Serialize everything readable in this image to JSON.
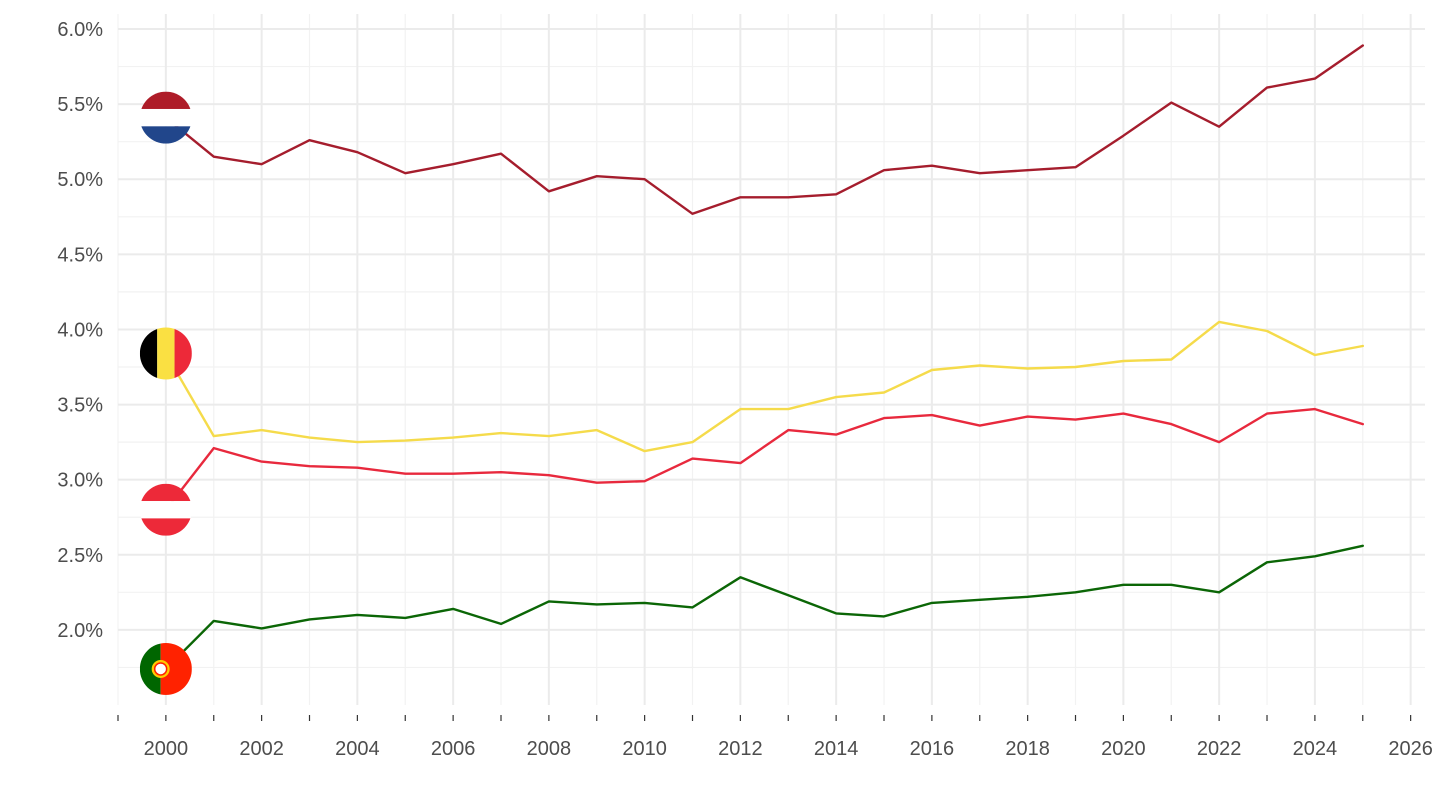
{
  "chart_data": {
    "type": "line",
    "title": "",
    "xlabel": "",
    "ylabel": "",
    "xlim": [
      1999,
      2026.3
    ],
    "ylim": [
      1.5,
      6.1
    ],
    "x_ticks": [
      2000,
      2002,
      2004,
      2006,
      2008,
      2010,
      2012,
      2014,
      2016,
      2018,
      2020,
      2022,
      2024,
      2026
    ],
    "x_tick_labels": [
      "2000",
      "2002",
      "2004",
      "2006",
      "2008",
      "2010",
      "2012",
      "2014",
      "2016",
      "2018",
      "2020",
      "2022",
      "2024",
      "2026"
    ],
    "y_ticks": [
      2.0,
      2.5,
      3.0,
      3.5,
      4.0,
      4.5,
      5.0,
      5.5,
      6.0
    ],
    "y_tick_labels": [
      "2.0%",
      "2.5%",
      "3.0%",
      "3.5%",
      "4.0%",
      "4.5%",
      "5.0%",
      "5.5%",
      "6.0%"
    ],
    "grid": true,
    "legend": "none",
    "x": [
      2000,
      2001,
      2002,
      2003,
      2004,
      2005,
      2006,
      2007,
      2008,
      2009,
      2010,
      2011,
      2012,
      2013,
      2014,
      2015,
      2016,
      2017,
      2018,
      2019,
      2020,
      2021,
      2022,
      2023,
      2024,
      2025
    ],
    "series": [
      {
        "flag": "netherlands-flag",
        "color": "#a51d2d",
        "values": [
          5.41,
          5.15,
          5.1,
          5.26,
          5.18,
          5.04,
          5.1,
          5.17,
          4.92,
          5.02,
          5.0,
          4.77,
          4.88,
          4.88,
          4.9,
          5.06,
          5.09,
          5.04,
          5.06,
          5.08,
          5.29,
          5.51,
          5.35,
          5.61,
          5.67,
          5.89
        ]
      },
      {
        "flag": "belgium-flag",
        "color": "#f5db4b",
        "values": [
          3.84,
          3.29,
          3.33,
          3.28,
          3.25,
          3.26,
          3.28,
          3.31,
          3.29,
          3.33,
          3.19,
          3.25,
          3.47,
          3.47,
          3.55,
          3.58,
          3.73,
          3.76,
          3.74,
          3.75,
          3.79,
          3.8,
          4.05,
          3.99,
          3.83,
          3.89
        ]
      },
      {
        "flag": "austria-flag",
        "color": "#e8293d",
        "values": [
          2.8,
          3.21,
          3.12,
          3.09,
          3.08,
          3.04,
          3.04,
          3.05,
          3.03,
          2.98,
          2.99,
          3.14,
          3.11,
          3.33,
          3.3,
          3.41,
          3.43,
          3.36,
          3.42,
          3.4,
          3.44,
          3.37,
          3.25,
          3.44,
          3.47,
          3.37
        ]
      },
      {
        "flag": "portugal-flag",
        "color": "#0b6606",
        "values": [
          1.74,
          2.06,
          2.01,
          2.07,
          2.1,
          2.08,
          2.14,
          2.04,
          2.19,
          2.17,
          2.18,
          2.15,
          2.35,
          2.23,
          2.11,
          2.09,
          2.18,
          2.2,
          2.22,
          2.25,
          2.3,
          2.3,
          2.25,
          2.45,
          2.49,
          2.56
        ]
      }
    ]
  },
  "colors": {
    "netherlands_red": "#ae1c28",
    "netherlands_white": "#ffffff",
    "netherlands_blue": "#21468b",
    "belgium_black": "#000000",
    "belgium_yellow": "#fae042",
    "belgium_red": "#ed2939",
    "austria_red": "#ed2939",
    "austria_white": "#ffffff",
    "portugal_green": "#006600",
    "portugal_red": "#ff2200",
    "portugal_shield": "#ffcc00"
  }
}
